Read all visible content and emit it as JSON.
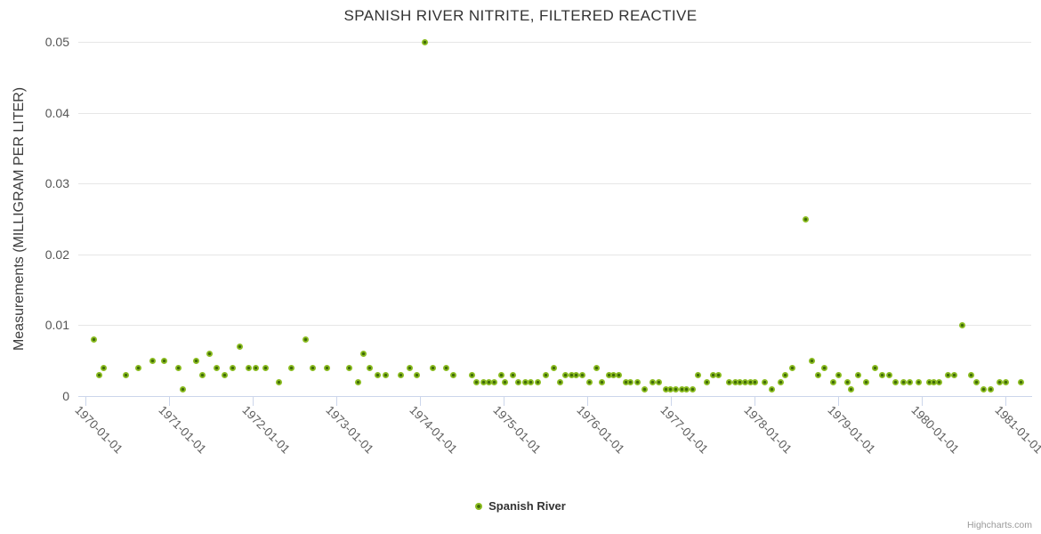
{
  "title": "SPANISH RIVER NITRITE, FILTERED REACTIVE",
  "legend": {
    "label": "Spanish River"
  },
  "credit": "Highcharts.com",
  "colors": {
    "series": "#8bbc21",
    "series_center": "#3f6b08",
    "grid": "#e6e6e6",
    "axis": "#ccd6eb"
  },
  "chart_data": {
    "type": "scatter",
    "title": "SPANISH RIVER NITRITE, FILTERED REACTIVE",
    "xlabel": "",
    "ylabel": "Measurements (MILLIGRAM PER LITER)",
    "ylim": [
      0,
      0.05
    ],
    "yticks": [
      0,
      0.01,
      0.02,
      0.03,
      0.04,
      0.05
    ],
    "ytick_labels": [
      "0",
      "0.01",
      "0.02",
      "0.03",
      "0.04",
      "0.05"
    ],
    "xlim_years": [
      1969.915,
      1981.31
    ],
    "xticks_years": [
      1970,
      1971,
      1972,
      1973,
      1974,
      1975,
      1976,
      1977,
      1978,
      1979,
      1980,
      1981
    ],
    "xtick_labels": [
      "1970-01-01",
      "1971-01-01",
      "1972-01-01",
      "1973-01-01",
      "1974-01-01",
      "1975-01-01",
      "1976-01-01",
      "1977-01-01",
      "1978-01-01",
      "1979-01-01",
      "1980-01-01",
      "1981-01-01"
    ],
    "grid": "horizontal",
    "legend_position": "bottom-center",
    "series": [
      {
        "name": "Spanish River",
        "color": "#8bbc21",
        "points": [
          [
            1970.1,
            0.008
          ],
          [
            1970.16,
            0.003
          ],
          [
            1970.22,
            0.004
          ],
          [
            1970.48,
            0.003
          ],
          [
            1970.63,
            0.004
          ],
          [
            1970.8,
            0.005
          ],
          [
            1970.94,
            0.005
          ],
          [
            1971.11,
            0.004
          ],
          [
            1971.17,
            0.001
          ],
          [
            1971.32,
            0.005
          ],
          [
            1971.4,
            0.003
          ],
          [
            1971.48,
            0.006
          ],
          [
            1971.57,
            0.004
          ],
          [
            1971.67,
            0.003
          ],
          [
            1971.76,
            0.004
          ],
          [
            1971.85,
            0.007
          ],
          [
            1971.95,
            0.004
          ],
          [
            1972.04,
            0.004
          ],
          [
            1972.15,
            0.004
          ],
          [
            1972.31,
            0.002
          ],
          [
            1972.46,
            0.004
          ],
          [
            1972.63,
            0.008
          ],
          [
            1972.72,
            0.004
          ],
          [
            1972.89,
            0.004
          ],
          [
            1973.16,
            0.004
          ],
          [
            1973.26,
            0.002
          ],
          [
            1973.33,
            0.006
          ],
          [
            1973.4,
            0.004
          ],
          [
            1973.5,
            0.003
          ],
          [
            1973.59,
            0.003
          ],
          [
            1973.77,
            0.003
          ],
          [
            1973.88,
            0.004
          ],
          [
            1973.96,
            0.003
          ],
          [
            1974.06,
            0.05
          ],
          [
            1974.16,
            0.004
          ],
          [
            1974.31,
            0.004
          ],
          [
            1974.4,
            0.003
          ],
          [
            1974.62,
            0.003
          ],
          [
            1974.68,
            0.002
          ],
          [
            1974.76,
            0.002
          ],
          [
            1974.82,
            0.002
          ],
          [
            1974.89,
            0.002
          ],
          [
            1974.97,
            0.003
          ],
          [
            1975.02,
            0.002
          ],
          [
            1975.11,
            0.003
          ],
          [
            1975.18,
            0.002
          ],
          [
            1975.26,
            0.002
          ],
          [
            1975.33,
            0.002
          ],
          [
            1975.41,
            0.002
          ],
          [
            1975.51,
            0.003
          ],
          [
            1975.6,
            0.004
          ],
          [
            1975.68,
            0.002
          ],
          [
            1975.74,
            0.003
          ],
          [
            1975.81,
            0.003
          ],
          [
            1975.87,
            0.003
          ],
          [
            1975.94,
            0.003
          ],
          [
            1976.03,
            0.002
          ],
          [
            1976.11,
            0.004
          ],
          [
            1976.18,
            0.002
          ],
          [
            1976.26,
            0.003
          ],
          [
            1976.32,
            0.003
          ],
          [
            1976.38,
            0.003
          ],
          [
            1976.46,
            0.002
          ],
          [
            1976.52,
            0.002
          ],
          [
            1976.6,
            0.002
          ],
          [
            1976.69,
            0.001
          ],
          [
            1976.78,
            0.002
          ],
          [
            1976.86,
            0.002
          ],
          [
            1976.94,
            0.001
          ],
          [
            1977.0,
            0.001
          ],
          [
            1977.06,
            0.001
          ],
          [
            1977.13,
            0.001
          ],
          [
            1977.19,
            0.001
          ],
          [
            1977.26,
            0.001
          ],
          [
            1977.33,
            0.003
          ],
          [
            1977.43,
            0.002
          ],
          [
            1977.51,
            0.003
          ],
          [
            1977.57,
            0.003
          ],
          [
            1977.7,
            0.002
          ],
          [
            1977.77,
            0.002
          ],
          [
            1977.83,
            0.002
          ],
          [
            1977.89,
            0.002
          ],
          [
            1977.95,
            0.002
          ],
          [
            1978.01,
            0.002
          ],
          [
            1978.12,
            0.002
          ],
          [
            1978.21,
            0.001
          ],
          [
            1978.31,
            0.002
          ],
          [
            1978.37,
            0.003
          ],
          [
            1978.45,
            0.004
          ],
          [
            1978.61,
            0.025
          ],
          [
            1978.69,
            0.005
          ],
          [
            1978.76,
            0.003
          ],
          [
            1978.84,
            0.004
          ],
          [
            1978.94,
            0.002
          ],
          [
            1979.01,
            0.003
          ],
          [
            1979.11,
            0.002
          ],
          [
            1979.16,
            0.001
          ],
          [
            1979.24,
            0.003
          ],
          [
            1979.34,
            0.002
          ],
          [
            1979.44,
            0.004
          ],
          [
            1979.53,
            0.003
          ],
          [
            1979.61,
            0.003
          ],
          [
            1979.69,
            0.002
          ],
          [
            1979.78,
            0.002
          ],
          [
            1979.86,
            0.002
          ],
          [
            1979.96,
            0.002
          ],
          [
            1980.09,
            0.002
          ],
          [
            1980.15,
            0.002
          ],
          [
            1980.21,
            0.002
          ],
          [
            1980.31,
            0.003
          ],
          [
            1980.39,
            0.003
          ],
          [
            1980.49,
            0.01
          ],
          [
            1980.59,
            0.003
          ],
          [
            1980.66,
            0.002
          ],
          [
            1980.74,
            0.001
          ],
          [
            1980.83,
            0.001
          ],
          [
            1980.93,
            0.002
          ],
          [
            1981.01,
            0.002
          ],
          [
            1981.19,
            0.002
          ]
        ]
      }
    ]
  }
}
